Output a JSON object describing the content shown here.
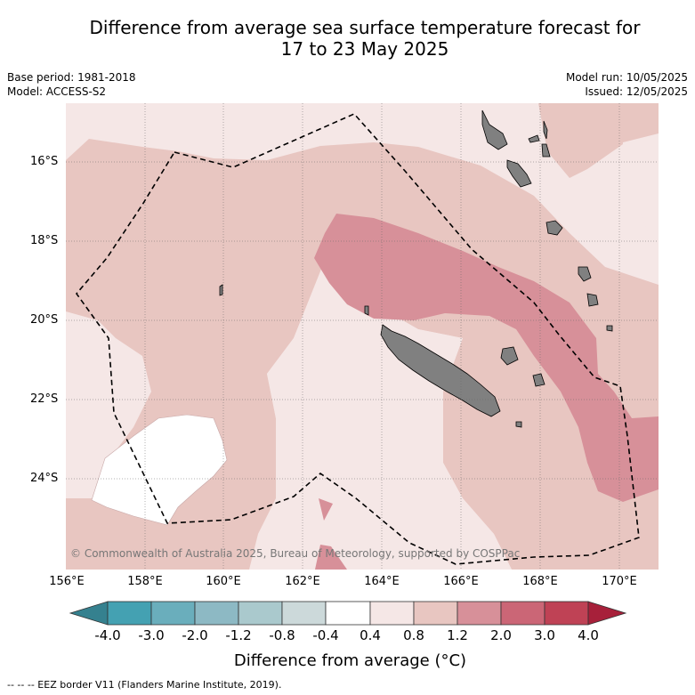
{
  "title_line1": "Difference from average sea surface temperature forecast for",
  "title_line2": "17 to 23 May 2025",
  "base_period": "Base period: 1981-2018",
  "model": "Model: ACCESS-S2",
  "model_run": "Model run: 10/05/2025",
  "issued": "Issued: 12/05/2025",
  "copyright": "© Commonwealth of Australia 2025, Bureau of Meteorology, supported by COSPPac",
  "lat_ticks": [
    "16°S",
    "18°S",
    "20°S",
    "22°S",
    "24°S"
  ],
  "lon_ticks": [
    "156°E",
    "158°E",
    "160°E",
    "162°E",
    "164°E",
    "166°E",
    "168°E",
    "170°E"
  ],
  "colorbar": {
    "title": "Difference from average (°C)",
    "labels": [
      "-4.0",
      "-3.0",
      "-2.0",
      "-1.2",
      "-0.8",
      "-0.4",
      "0.4",
      "0.8",
      "1.2",
      "2.0",
      "3.0",
      "4.0"
    ],
    "colors": [
      "#44a1b2",
      "#6aaebc",
      "#8db9c4",
      "#aac9cd",
      "#ccd9da",
      "#ffffff",
      "#f5e7e6",
      "#e8c6c1",
      "#d79099",
      "#cb6676",
      "#bf4255"
    ],
    "under_color": "#35818f",
    "over_color": "#a7203a"
  },
  "footnote": "--  --  -- EEZ border V11 (Flanders Marine Institute, 2019)."
}
